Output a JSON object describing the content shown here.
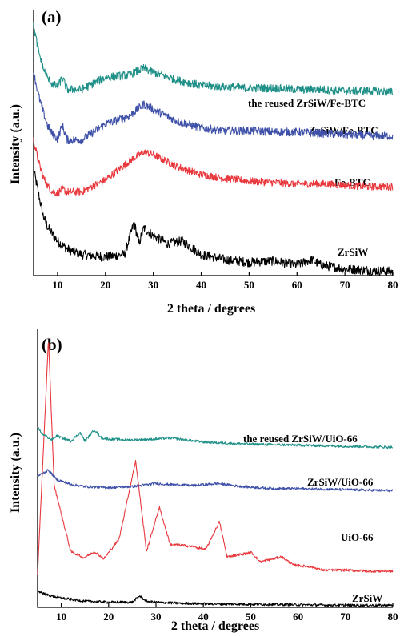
{
  "colors": {
    "black": "#000000",
    "red": "#e8373d",
    "blue": "#3e50a8",
    "teal": "#1e9087"
  },
  "chart_data": [
    {
      "type": "line",
      "panel_label": "(a)",
      "xlabel": "2 theta / degrees",
      "ylabel": "Intensity (a.u.)",
      "xlim": [
        5,
        80
      ],
      "xticks": [
        10,
        20,
        30,
        40,
        50,
        60,
        70,
        80
      ],
      "yticks": false,
      "grid": false,
      "legend": "inline labels on the right",
      "series": [
        {
          "name": "ZrSiW",
          "color": "black",
          "x": [
            5,
            6,
            7,
            8,
            9,
            10,
            12,
            15,
            20,
            24,
            26,
            27,
            28,
            30,
            33,
            36,
            40,
            45,
            50,
            55,
            60,
            63,
            65,
            70,
            75,
            80
          ],
          "y": [
            8.0,
            6.2,
            4.5,
            3.6,
            3.1,
            2.6,
            2.0,
            1.6,
            1.4,
            1.6,
            4.0,
            2.4,
            3.6,
            3.0,
            2.4,
            2.6,
            1.6,
            1.2,
            1.0,
            1.1,
            0.8,
            1.2,
            0.8,
            0.5,
            0.4,
            0.3
          ]
        },
        {
          "name": "Fe-BTC",
          "color": "red",
          "x": [
            5,
            6,
            7,
            8,
            9,
            10,
            11,
            12,
            15,
            20,
            25,
            28,
            30,
            35,
            40,
            45,
            50,
            55,
            60,
            65,
            70,
            75,
            80
          ],
          "y": [
            10.2,
            8.6,
            7.4,
            6.7,
            6.3,
            6.2,
            6.5,
            6.3,
            6.3,
            7.2,
            8.6,
            9.3,
            9.1,
            8.2,
            7.6,
            7.3,
            7.1,
            7.0,
            6.9,
            6.9,
            6.8,
            6.7,
            6.7
          ]
        },
        {
          "name": "ZrSiW/Fe-BTC",
          "color": "blue",
          "x": [
            5,
            6,
            7,
            8,
            9,
            10,
            11,
            12,
            15,
            20,
            25,
            28,
            30,
            35,
            40,
            45,
            50,
            55,
            60,
            65,
            70,
            75,
            80
          ],
          "y": [
            15.3,
            13.6,
            12.3,
            11.2,
            10.6,
            10.3,
            11.3,
            10.2,
            10.2,
            11.4,
            12.0,
            12.9,
            12.5,
            11.6,
            11.1,
            10.9,
            10.9,
            10.8,
            10.8,
            10.7,
            10.6,
            10.5,
            10.5
          ]
        },
        {
          "name": "the reused ZrSiW/Fe-BTC",
          "color": "teal",
          "x": [
            5,
            6,
            7,
            8,
            9,
            10,
            11,
            12,
            15,
            20,
            25,
            28,
            30,
            35,
            40,
            45,
            50,
            55,
            60,
            65,
            70,
            75,
            80
          ],
          "y": [
            18.8,
            16.9,
            15.6,
            14.8,
            14.4,
            14.2,
            14.9,
            14.0,
            14.0,
            14.9,
            15.1,
            15.6,
            15.3,
            14.7,
            14.3,
            14.2,
            14.1,
            14.1,
            14.0,
            14.0,
            13.9,
            13.9,
            13.8
          ]
        }
      ]
    },
    {
      "type": "line",
      "panel_label": "(b)",
      "xlabel": "2 theta / degrees",
      "ylabel": "Intensity (a.u.)",
      "xlim": [
        5,
        80
      ],
      "xticks": [
        10,
        20,
        30,
        40,
        50,
        60,
        70,
        80
      ],
      "yticks": false,
      "grid": false,
      "legend": "inline labels on the right",
      "series": [
        {
          "name": "ZrSiW",
          "color": "black",
          "x": [
            5,
            7,
            10,
            15,
            20,
            25,
            26.5,
            28,
            30,
            35,
            40,
            50,
            60,
            70,
            80
          ],
          "y": [
            1.6,
            1.2,
            0.9,
            0.6,
            0.5,
            0.5,
            1.1,
            0.6,
            0.5,
            0.4,
            0.35,
            0.3,
            0.25,
            0.2,
            0.2
          ]
        },
        {
          "name": "UiO-66",
          "color": "red",
          "x": [
            5,
            7.3,
            8.5,
            12,
            14.8,
            17,
            19,
            22.2,
            25.7,
            28,
            30.7,
            33,
            35.6,
            37.5,
            40.5,
            43.4,
            45,
            50.2,
            52,
            56.5,
            59,
            63,
            65,
            70,
            75,
            80
          ],
          "y": [
            3.2,
            26.0,
            11.8,
            5.4,
            4.8,
            5.4,
            4.7,
            6.6,
            14.2,
            5.4,
            9.7,
            6.1,
            6.0,
            5.9,
            5.6,
            8.3,
            4.9,
            5.3,
            4.4,
            4.9,
            4.1,
            3.9,
            3.6,
            3.6,
            3.5,
            3.5
          ]
        },
        {
          "name": "ZrSiW/UiO-66",
          "color": "blue",
          "x": [
            5,
            7.3,
            9,
            12,
            15,
            20,
            25,
            30,
            33,
            38,
            43,
            48,
            55,
            60,
            70,
            80
          ],
          "y": [
            12.7,
            13.3,
            12.4,
            11.9,
            11.7,
            11.6,
            11.7,
            12.0,
            11.9,
            11.8,
            12.0,
            11.7,
            11.5,
            11.5,
            11.4,
            11.3
          ]
        },
        {
          "name": "the reused ZrSiW/UiO-66",
          "color": "teal",
          "x": [
            5,
            6,
            8,
            9,
            12,
            14,
            15,
            17,
            18.5,
            20,
            25,
            30,
            33,
            40,
            50,
            60,
            70,
            80
          ],
          "y": [
            17.4,
            16.8,
            16.2,
            16.6,
            16.1,
            16.9,
            16.1,
            17.2,
            16.4,
            16.3,
            16.2,
            16.3,
            16.4,
            16.0,
            15.8,
            15.7,
            15.6,
            15.5
          ]
        }
      ]
    }
  ]
}
